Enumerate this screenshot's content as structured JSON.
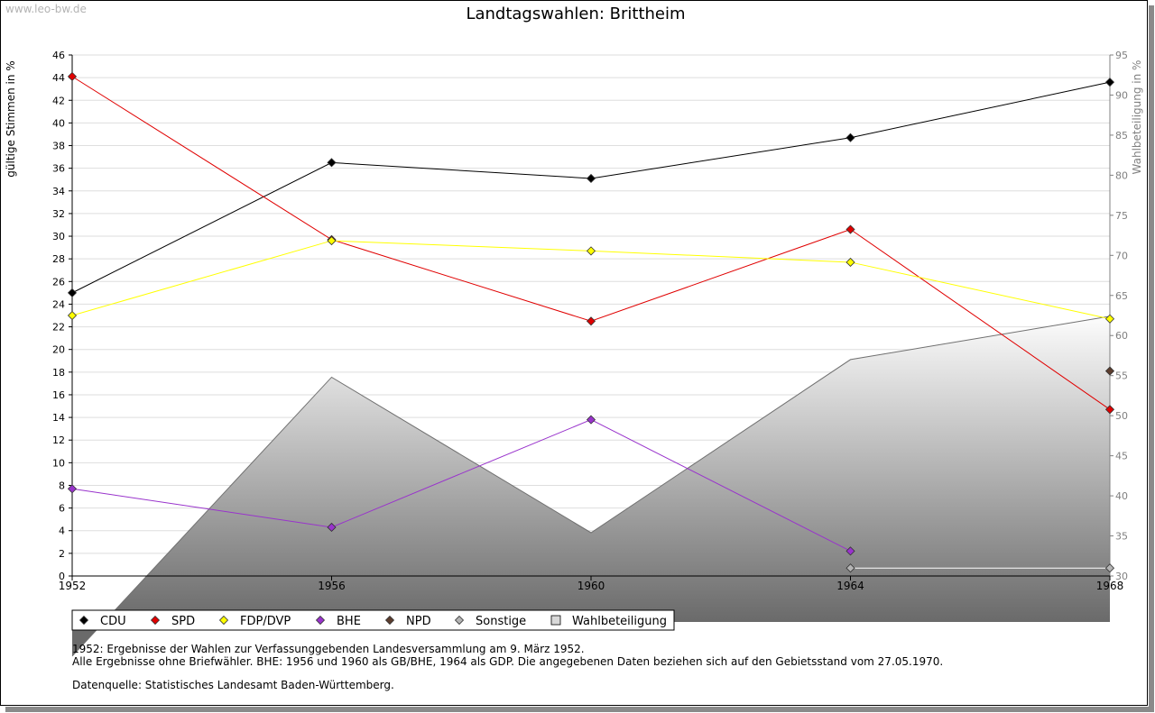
{
  "watermark": "www.leo-bw.de",
  "chart_data": {
    "type": "line",
    "title": "Landtagswahlen: Brittheim",
    "ylabel": "gültige Stimmen in %",
    "y2label": "Wahlbeteiligung in %",
    "x": [
      "1952",
      "1956",
      "1960",
      "1964",
      "1968"
    ],
    "ylim": [
      0,
      46
    ],
    "yticks": [
      0,
      2,
      4,
      6,
      8,
      10,
      12,
      14,
      16,
      18,
      20,
      22,
      24,
      26,
      28,
      30,
      32,
      34,
      36,
      38,
      40,
      42,
      44,
      46
    ],
    "y2lim": [
      30,
      95
    ],
    "y2ticks": [
      30,
      35,
      40,
      45,
      50,
      55,
      60,
      65,
      70,
      75,
      80,
      85,
      90,
      95
    ],
    "grid": true,
    "series": [
      {
        "name": "CDU",
        "color": "#000000",
        "values": [
          25.0,
          36.5,
          35.1,
          38.7,
          43.6
        ]
      },
      {
        "name": "SPD",
        "color": "#e00000",
        "values": [
          44.1,
          29.7,
          22.5,
          30.6,
          14.7
        ]
      },
      {
        "name": "FDP/DVP",
        "color": "#ffff00",
        "values": [
          23.0,
          29.6,
          28.7,
          27.7,
          22.7
        ]
      },
      {
        "name": "BHE",
        "color": "#9933cc",
        "values": [
          7.7,
          4.3,
          13.8,
          2.2,
          null
        ]
      },
      {
        "name": "NPD",
        "color": "#5c3d2e",
        "values": [
          null,
          null,
          null,
          null,
          18.1
        ]
      },
      {
        "name": "Sonstige",
        "color": "#b4b4b4",
        "values": [
          null,
          null,
          null,
          0.7,
          0.7
        ]
      }
    ],
    "area": {
      "name": "Wahlbeteiligung",
      "axis": "right",
      "values": [
        20.0,
        54.8,
        35.4,
        57.0,
        62.4
      ]
    },
    "legend_position": "bottom-left"
  },
  "notes": [
    "1952: Ergebnisse der Wahlen zur Verfassunggebenden Landesversammlung am 9. März 1952.",
    "Alle Ergebnisse ohne Briefwähler. BHE: 1956 und 1960 als GB/BHE, 1964 als GDP. Die angegebenen Daten beziehen sich auf den Gebietsstand vom 27.05.1970.",
    "Datenquelle: Statistisches Landesamt Baden-Württemberg."
  ]
}
